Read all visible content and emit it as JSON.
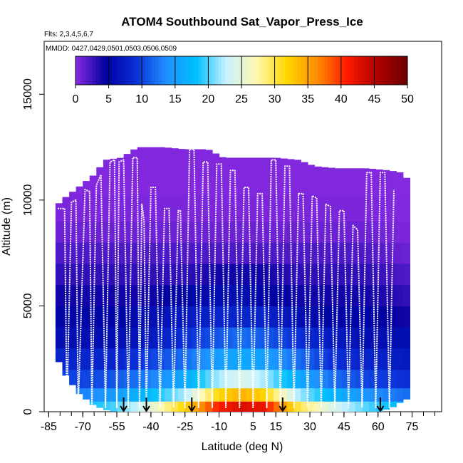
{
  "chart_data": {
    "type": "heatmap",
    "title": "ATOM4 Southbound Sat_Vapor_Press_Ice",
    "subtitle": "Flts: 2,3,4,5,6,7",
    "annotation": "MMDD: 0427,0429,0501,0503,0506,0509",
    "xlabel": "Latitude (deg N)",
    "ylabel": "Altitude (m)",
    "xlim": [
      -87,
      88
    ],
    "ylim": [
      0,
      17500
    ],
    "x_ticks": [
      -85,
      -70,
      -55,
      -40,
      -25,
      -10,
      5,
      15,
      30,
      45,
      60,
      75
    ],
    "y_ticks": [
      0,
      5000,
      10000,
      15000
    ],
    "y_tick_labels": [
      "0",
      "5000",
      "10000",
      "15000"
    ],
    "grid": false,
    "colorbar": {
      "min": 0,
      "max": 50,
      "ticks": [
        0,
        5,
        10,
        15,
        20,
        25,
        30,
        35,
        40,
        45,
        50
      ],
      "colors": [
        "#8a2be2",
        "#0000a0",
        "#0b2fd8",
        "#1e90ff",
        "#00bfff",
        "#c8f2ff",
        "#fff8b0",
        "#ffd700",
        "#ff8c00",
        "#ff1a00",
        "#b00000",
        "#6a0000"
      ]
    },
    "top_of_data_profile": {
      "lat": [
        -82,
        -78,
        -72,
        -65,
        -60,
        -53,
        -46,
        -42,
        -35,
        -25,
        -15,
        -8,
        5,
        15,
        25,
        32,
        42,
        55,
        65,
        70,
        73
      ],
      "alt": [
        9700,
        10100,
        10600,
        11200,
        11900,
        12000,
        12500,
        12500,
        12500,
        12400,
        12400,
        12000,
        12000,
        12000,
        11900,
        11600,
        11500,
        11500,
        11400,
        11300,
        11000
      ]
    },
    "bottom_of_data_profile": {
      "lat": [
        -82,
        -78,
        -72,
        -65,
        -60,
        -55,
        60,
        66,
        72
      ],
      "alt": [
        2700,
        1800,
        900,
        300,
        100,
        0,
        0,
        200,
        600
      ]
    },
    "shading_columns": [
      {
        "lat": -82,
        "values": [
          17,
          13,
          10,
          8,
          6,
          5,
          4,
          3,
          2,
          1,
          0.5,
          0.3
        ]
      },
      {
        "lat": -70,
        "values": [
          18,
          13,
          10,
          8,
          6,
          5,
          4,
          3,
          2,
          1,
          0.5,
          0.3
        ]
      },
      {
        "lat": -55,
        "values": [
          20,
          15,
          11,
          8,
          6,
          5,
          4,
          3,
          2,
          1,
          0.5,
          0.3
        ]
      },
      {
        "lat": -40,
        "values": [
          25,
          18,
          13,
          10,
          7,
          6,
          4,
          3,
          2,
          1,
          0.5,
          0.3
        ]
      },
      {
        "lat": -25,
        "values": [
          32,
          22,
          16,
          12,
          9,
          7,
          5,
          3,
          2,
          1,
          0.5,
          0.3
        ]
      },
      {
        "lat": -10,
        "values": [
          41,
          32,
          22,
          15,
          11,
          8,
          6,
          4,
          2,
          1,
          0.5,
          0.3
        ]
      },
      {
        "lat": 0,
        "values": [
          43,
          34,
          24,
          16,
          12,
          8,
          6,
          4,
          2,
          1,
          0.5,
          0.3
        ]
      },
      {
        "lat": 10,
        "values": [
          42,
          32,
          22,
          15,
          11,
          8,
          5,
          4,
          2,
          1,
          0.5,
          0.3
        ]
      },
      {
        "lat": 25,
        "values": [
          30,
          22,
          16,
          12,
          9,
          6,
          4,
          3,
          2,
          1,
          0.5,
          0.3
        ]
      },
      {
        "lat": 40,
        "values": [
          24,
          17,
          12,
          9,
          7,
          5,
          4,
          3,
          2,
          1,
          0.5,
          0.3
        ]
      },
      {
        "lat": 55,
        "values": [
          20,
          14,
          10,
          8,
          6,
          5,
          4,
          3,
          2,
          1,
          0.5,
          0.3
        ]
      },
      {
        "lat": 72,
        "values": [
          17,
          12,
          9,
          7,
          6,
          4,
          3,
          2,
          1,
          0.5,
          0.3,
          0.2
        ]
      }
    ],
    "shading_altitudes": [
      250,
      750,
      1500,
      2500,
      3500,
      4500,
      5500,
      6500,
      7500,
      8500,
      9500,
      11000
    ],
    "flight_track": {
      "lat": [
        -81,
        -78,
        -77,
        -75,
        -73,
        -72,
        -69,
        -67,
        -66,
        -64,
        -62,
        -60,
        -58,
        -56,
        -55,
        -54,
        -52,
        -50,
        -48,
        -46,
        -45,
        -44,
        -43,
        -42,
        -40,
        -38,
        -36,
        -34,
        -32,
        -30,
        -28,
        -27,
        -25,
        -23,
        -21,
        -19,
        -17,
        -15,
        -13,
        -11,
        -9,
        -7,
        -5,
        -3,
        -1,
        1,
        3,
        5,
        7,
        9,
        11,
        13,
        15,
        17,
        19,
        21,
        23,
        25,
        27,
        29,
        31,
        33,
        35,
        37,
        39,
        41,
        43,
        45,
        47,
        49,
        51,
        53,
        55,
        57,
        59,
        61,
        63,
        65,
        67,
        68,
        69,
        70,
        71
      ],
      "alt": [
        9600,
        9600,
        200,
        9900,
        10000,
        200,
        10500,
        10400,
        200,
        10700,
        11200,
        200,
        11800,
        11900,
        200,
        11800,
        11900,
        200,
        12000,
        12000,
        200,
        9800,
        9000,
        200,
        10600,
        10600,
        200,
        9600,
        9600,
        200,
        9500,
        9500,
        200,
        12400,
        12400,
        200,
        11800,
        11800,
        200,
        11700,
        11700,
        200,
        11400,
        11400,
        200,
        10600,
        10600,
        200,
        10300,
        10300,
        200,
        11900,
        11900,
        200,
        11600,
        11600,
        200,
        10300,
        10300,
        200,
        10200,
        10100,
        200,
        9800,
        9700,
        200,
        9500,
        9500,
        200,
        8800,
        8600,
        200,
        11300,
        11300,
        200,
        11300,
        11300,
        200,
        10500
      ]
    },
    "arrow_markers": {
      "lat": [
        -52,
        -42,
        -22,
        18,
        61
      ]
    }
  }
}
